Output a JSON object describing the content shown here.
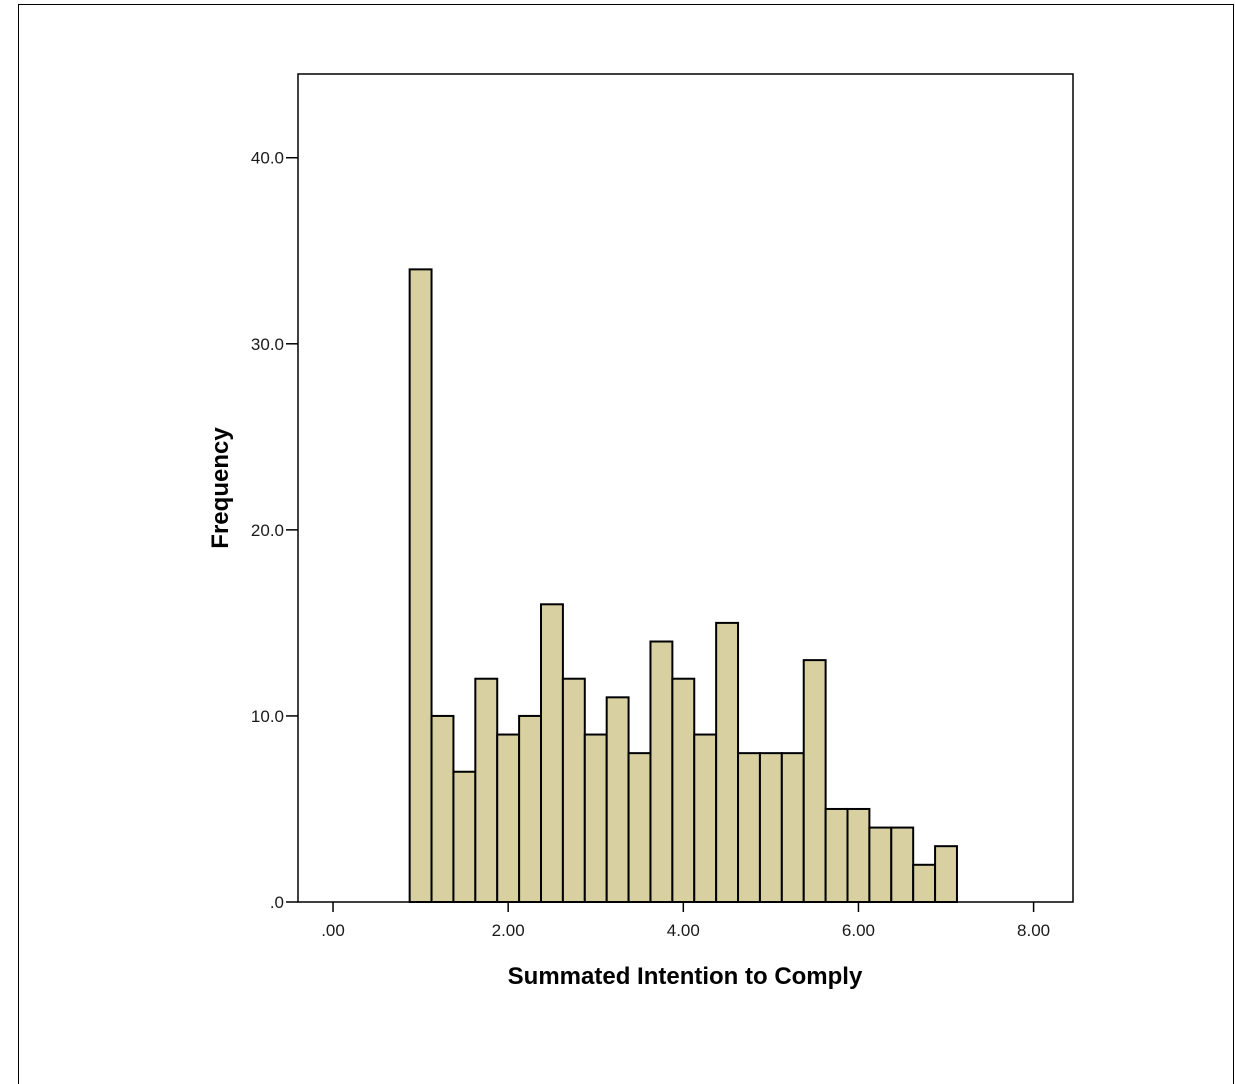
{
  "chart_data": {
    "type": "bar",
    "xlabel": "Summated Intention to Comply",
    "ylabel": "Frequency",
    "xlim": [
      -0.4,
      8.45
    ],
    "ylim": [
      0,
      44.5
    ],
    "x_ticks": [
      {
        "value": 0,
        "label": ".00"
      },
      {
        "value": 2,
        "label": "2.00"
      },
      {
        "value": 4,
        "label": "4.00"
      },
      {
        "value": 6,
        "label": "6.00"
      },
      {
        "value": 8,
        "label": "8.00"
      }
    ],
    "y_ticks": [
      {
        "value": 0,
        "label": ".0"
      },
      {
        "value": 10,
        "label": "10.0"
      },
      {
        "value": 20,
        "label": "20.0"
      },
      {
        "value": 30,
        "label": "30.0"
      },
      {
        "value": 40,
        "label": "40.0"
      }
    ],
    "bin_start": 0.875,
    "bin_width": 0.25,
    "values": [
      34,
      10,
      7,
      12,
      9,
      10,
      16,
      12,
      9,
      11,
      8,
      14,
      12,
      9,
      15,
      8,
      8,
      8,
      13,
      5,
      5,
      4,
      4,
      2,
      3
    ],
    "bar_fill": "#d8d0a0",
    "bar_stroke": "#000000",
    "grid": false
  }
}
